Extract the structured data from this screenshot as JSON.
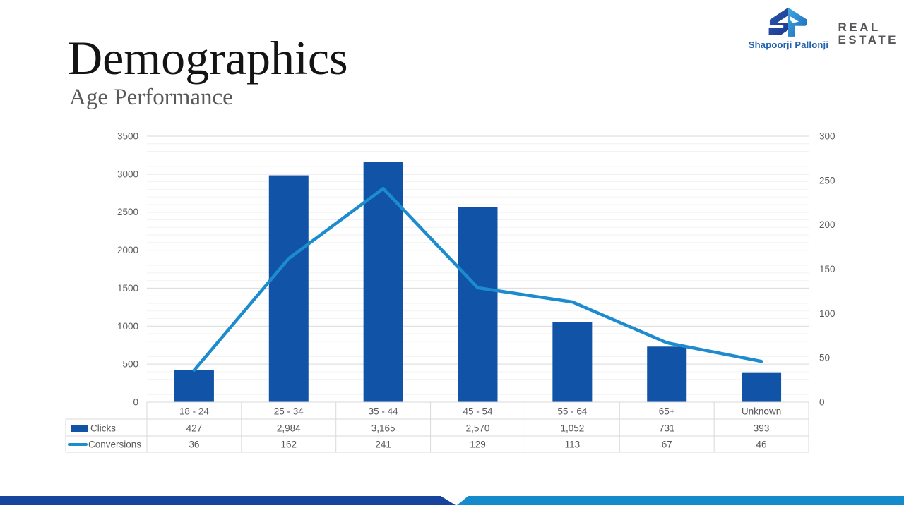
{
  "slide": {
    "title": "Demographics",
    "subtitle": "Age Performance"
  },
  "logo": {
    "brand": "Shapoorji Pallonji",
    "division_line1": "REAL",
    "division_line2": "ESTATE",
    "brand_color": "#2161AE",
    "division_color": "#55565A"
  },
  "chart_data": {
    "type": "bar",
    "subtype": "combo-bar-line-dual-axis",
    "categories": [
      "18 - 24",
      "25 - 34",
      "35 - 44",
      "45 - 54",
      "55 - 64",
      "65+",
      "Unknown"
    ],
    "series": [
      {
        "name": "Clicks",
        "type": "bar",
        "axis": "left",
        "color": "#1154A7",
        "values": [
          427,
          2984,
          3165,
          2570,
          1052,
          731,
          393
        ],
        "display_values": [
          "427",
          "2,984",
          "3,165",
          "2,570",
          "1,052",
          "731",
          "393"
        ]
      },
      {
        "name": "Conversions",
        "type": "line",
        "axis": "right",
        "color": "#1C8CCE",
        "values": [
          36,
          162,
          241,
          129,
          113,
          67,
          46
        ],
        "display_values": [
          "36",
          "162",
          "241",
          "129",
          "113",
          "67",
          "46"
        ]
      }
    ],
    "left_axis": {
      "min": 0,
      "max": 3500,
      "major_step": 500,
      "minor_step": 100,
      "ticks": [
        "3500",
        "3000",
        "2500",
        "2000",
        "1500",
        "1000",
        "500",
        "0"
      ]
    },
    "right_axis": {
      "min": 0,
      "max": 300,
      "major_step": 50,
      "ticks": [
        "300",
        "250",
        "200",
        "150",
        "100",
        "50",
        "0"
      ]
    },
    "grid": "horizontal major + minor",
    "legend_position": "table-left",
    "gridline_major_color": "#D9D9D9",
    "gridline_minor_color": "#F2F2F2",
    "table_border_color": "#D9D9D9",
    "axis_text_color": "#595959"
  },
  "footer": {
    "dark_color": "#17459E",
    "light_color": "#168BCB"
  }
}
